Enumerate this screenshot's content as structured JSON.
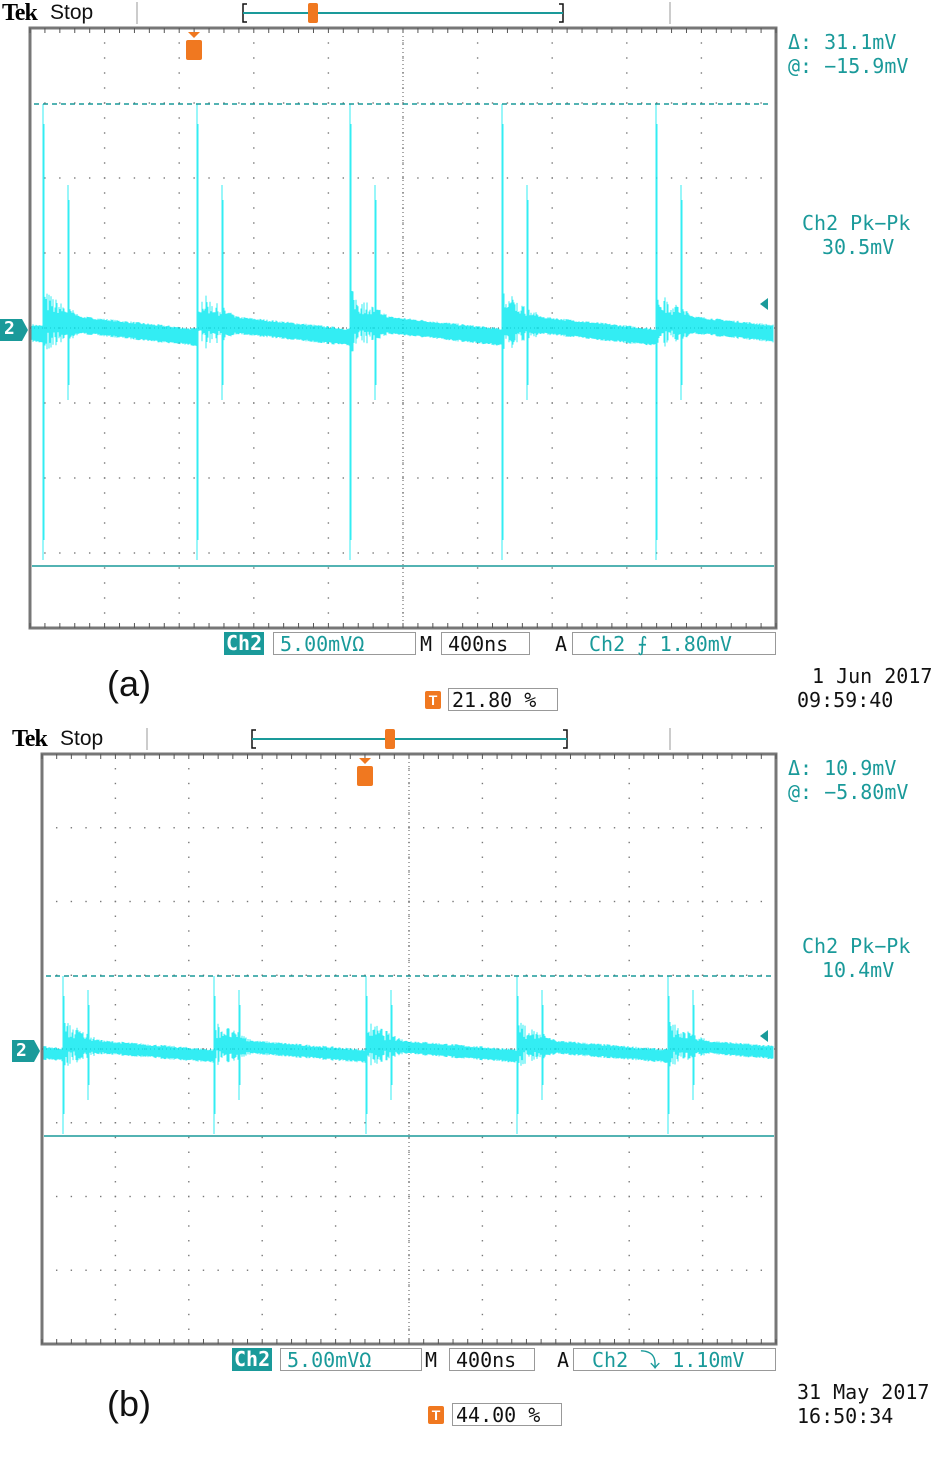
{
  "colors": {
    "trace": "#00e8f0",
    "ui_teal": "#1a9a9a",
    "trigger": "#f07820",
    "grid": "#777777"
  },
  "panels": [
    {
      "label": "(a)",
      "brand": "Tek",
      "state": "Stop",
      "cursor_delta": "Δ:  31.1mV",
      "cursor_at": "@: −15.9mV",
      "pkpk_label": "Ch2 Pk−Pk",
      "pkpk_value": "30.5mV",
      "channel_marker": "2",
      "channel": "Ch2",
      "vscale": "5.00mVΩ",
      "m_label": "M",
      "timebase": "400ns",
      "a_label": "A",
      "trigger": "Ch2 ⨍ 1.80mV",
      "trigger_slope": "rising",
      "trigger_pos": "21.80 %",
      "date": "1 Jun 2017",
      "time": "09:59:40"
    },
    {
      "label": "(b)",
      "brand": "Tek",
      "state": "Stop",
      "cursor_delta": "Δ:  10.9mV",
      "cursor_at": "@: −5.80mV",
      "pkpk_label": "Ch2 Pk−Pk",
      "pkpk_value": "10.4mV",
      "channel_marker": "2",
      "channel": "Ch2",
      "vscale": "5.00mVΩ",
      "m_label": "M",
      "timebase": "400ns",
      "a_label": "A",
      "trigger": "Ch2 ⤵ 1.10mV",
      "trigger_slope": "falling",
      "trigger_pos": "44.00 %",
      "date": "31 May 2017",
      "time": "16:50:34"
    }
  ],
  "chart_data": [
    {
      "type": "line",
      "title": "",
      "xlabel": "",
      "ylabel": "",
      "grid": true,
      "divisions": {
        "x": 10,
        "y": 8
      },
      "volts_per_div_mV": 5.0,
      "time_per_div_ns": 400,
      "pk_pk_mV": 30.5,
      "cursor_delta_mV": 31.1,
      "cursor_at_mV": -15.9,
      "spike_count": 5
    },
    {
      "type": "line",
      "title": "",
      "xlabel": "",
      "ylabel": "",
      "grid": true,
      "divisions": {
        "x": 10,
        "y": 8
      },
      "volts_per_div_mV": 5.0,
      "time_per_div_ns": 400,
      "pk_pk_mV": 10.4,
      "cursor_delta_mV": 10.9,
      "cursor_at_mV": -5.8,
      "spike_count": 5
    }
  ]
}
